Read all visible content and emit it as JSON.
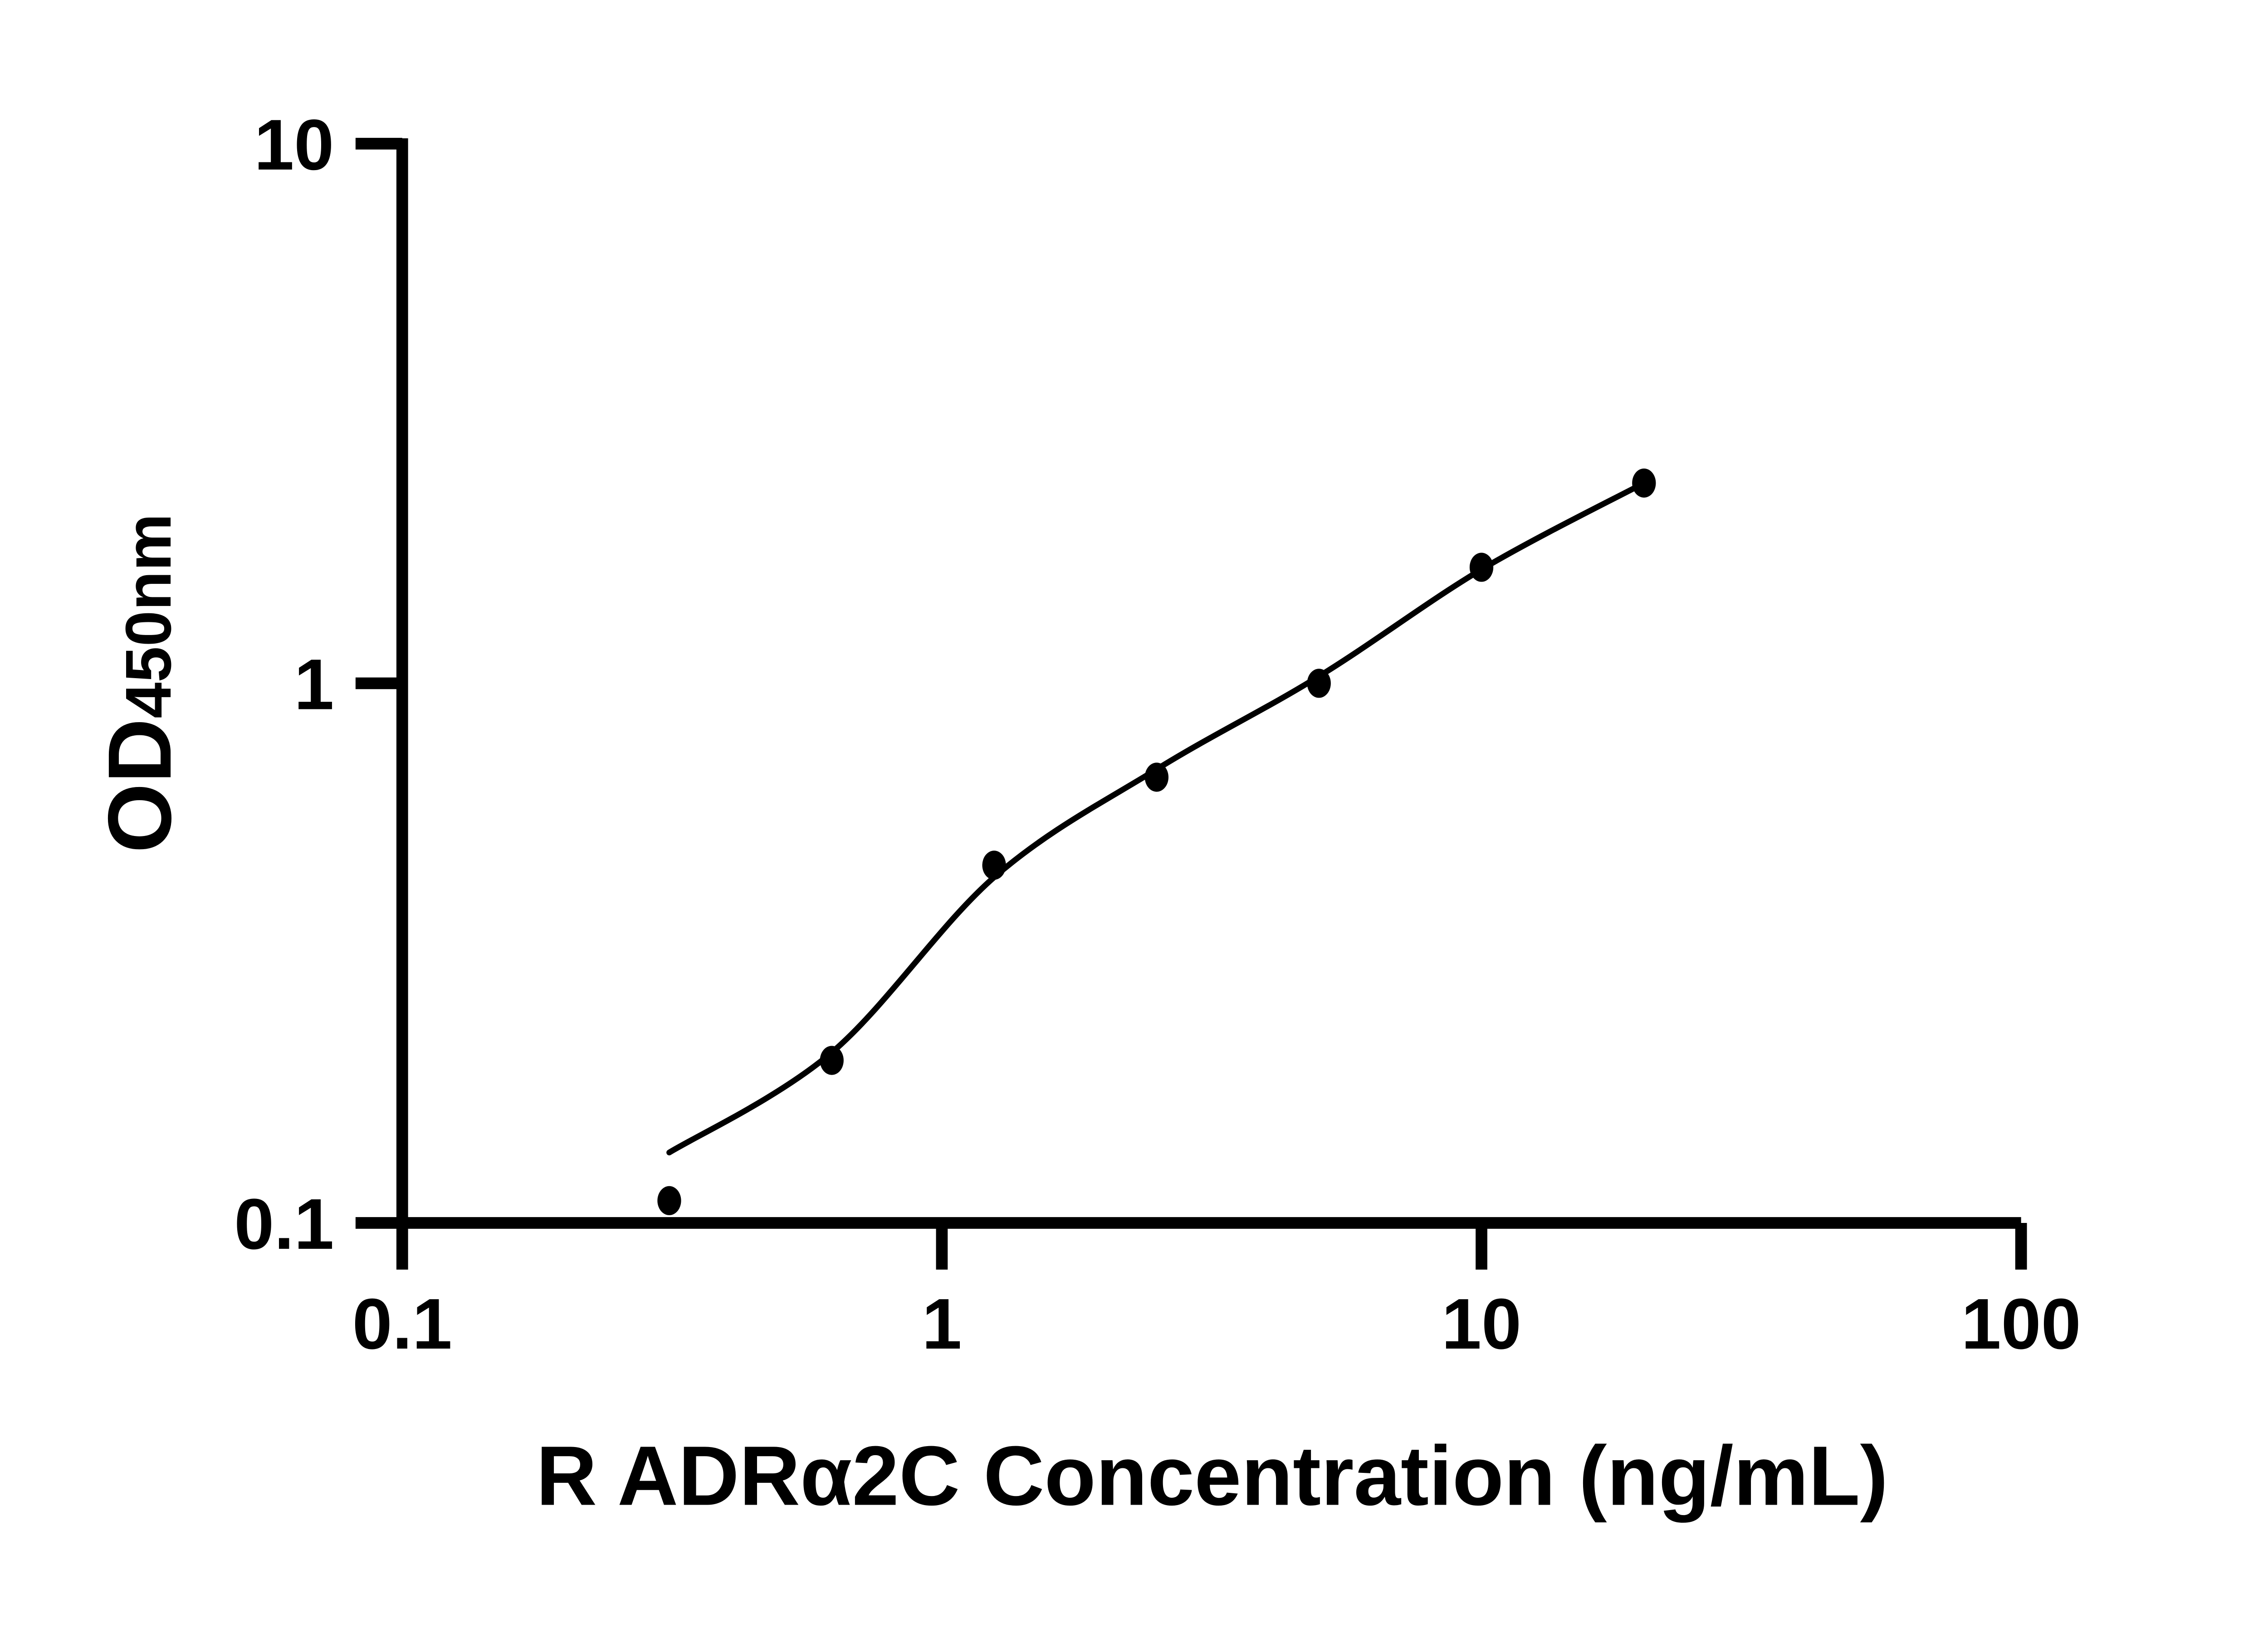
{
  "colors": {
    "foreground": "#000000",
    "background": "#ffffff"
  },
  "chart_data": {
    "type": "scatter",
    "title": "",
    "xlabel": "R ADRα2C Concentration (ng/mL)",
    "ylabel_main": "OD",
    "ylabel_subscript": "450nm",
    "x_scale": "log",
    "y_scale": "log",
    "xlim": [
      0.1,
      100
    ],
    "ylim": [
      0.1,
      10
    ],
    "x_ticks": [
      0.1,
      1,
      10,
      100
    ],
    "x_tick_labels": [
      "0.1",
      "1",
      "10",
      "100"
    ],
    "y_ticks": [
      0.1,
      1,
      10
    ],
    "y_tick_labels": [
      "0.1",
      "1",
      "10"
    ],
    "grid": false,
    "legend": "none",
    "series": [
      {
        "name": "standard-curve-points",
        "marker": "filled-circle",
        "color": "#000000",
        "x": [
          0.3125,
          0.625,
          1.25,
          2.5,
          5,
          10,
          20
        ],
        "y": [
          0.11,
          0.2,
          0.46,
          0.67,
          1.0,
          1.64,
          2.35
        ]
      }
    ],
    "fit_curve": {
      "name": "4pl-fit-line",
      "color": "#000000",
      "x": [
        0.3125,
        0.625,
        1.25,
        2.5,
        5,
        10,
        20
      ],
      "y": [
        0.135,
        0.207,
        0.437,
        0.693,
        1.03,
        1.625,
        2.35
      ]
    }
  }
}
